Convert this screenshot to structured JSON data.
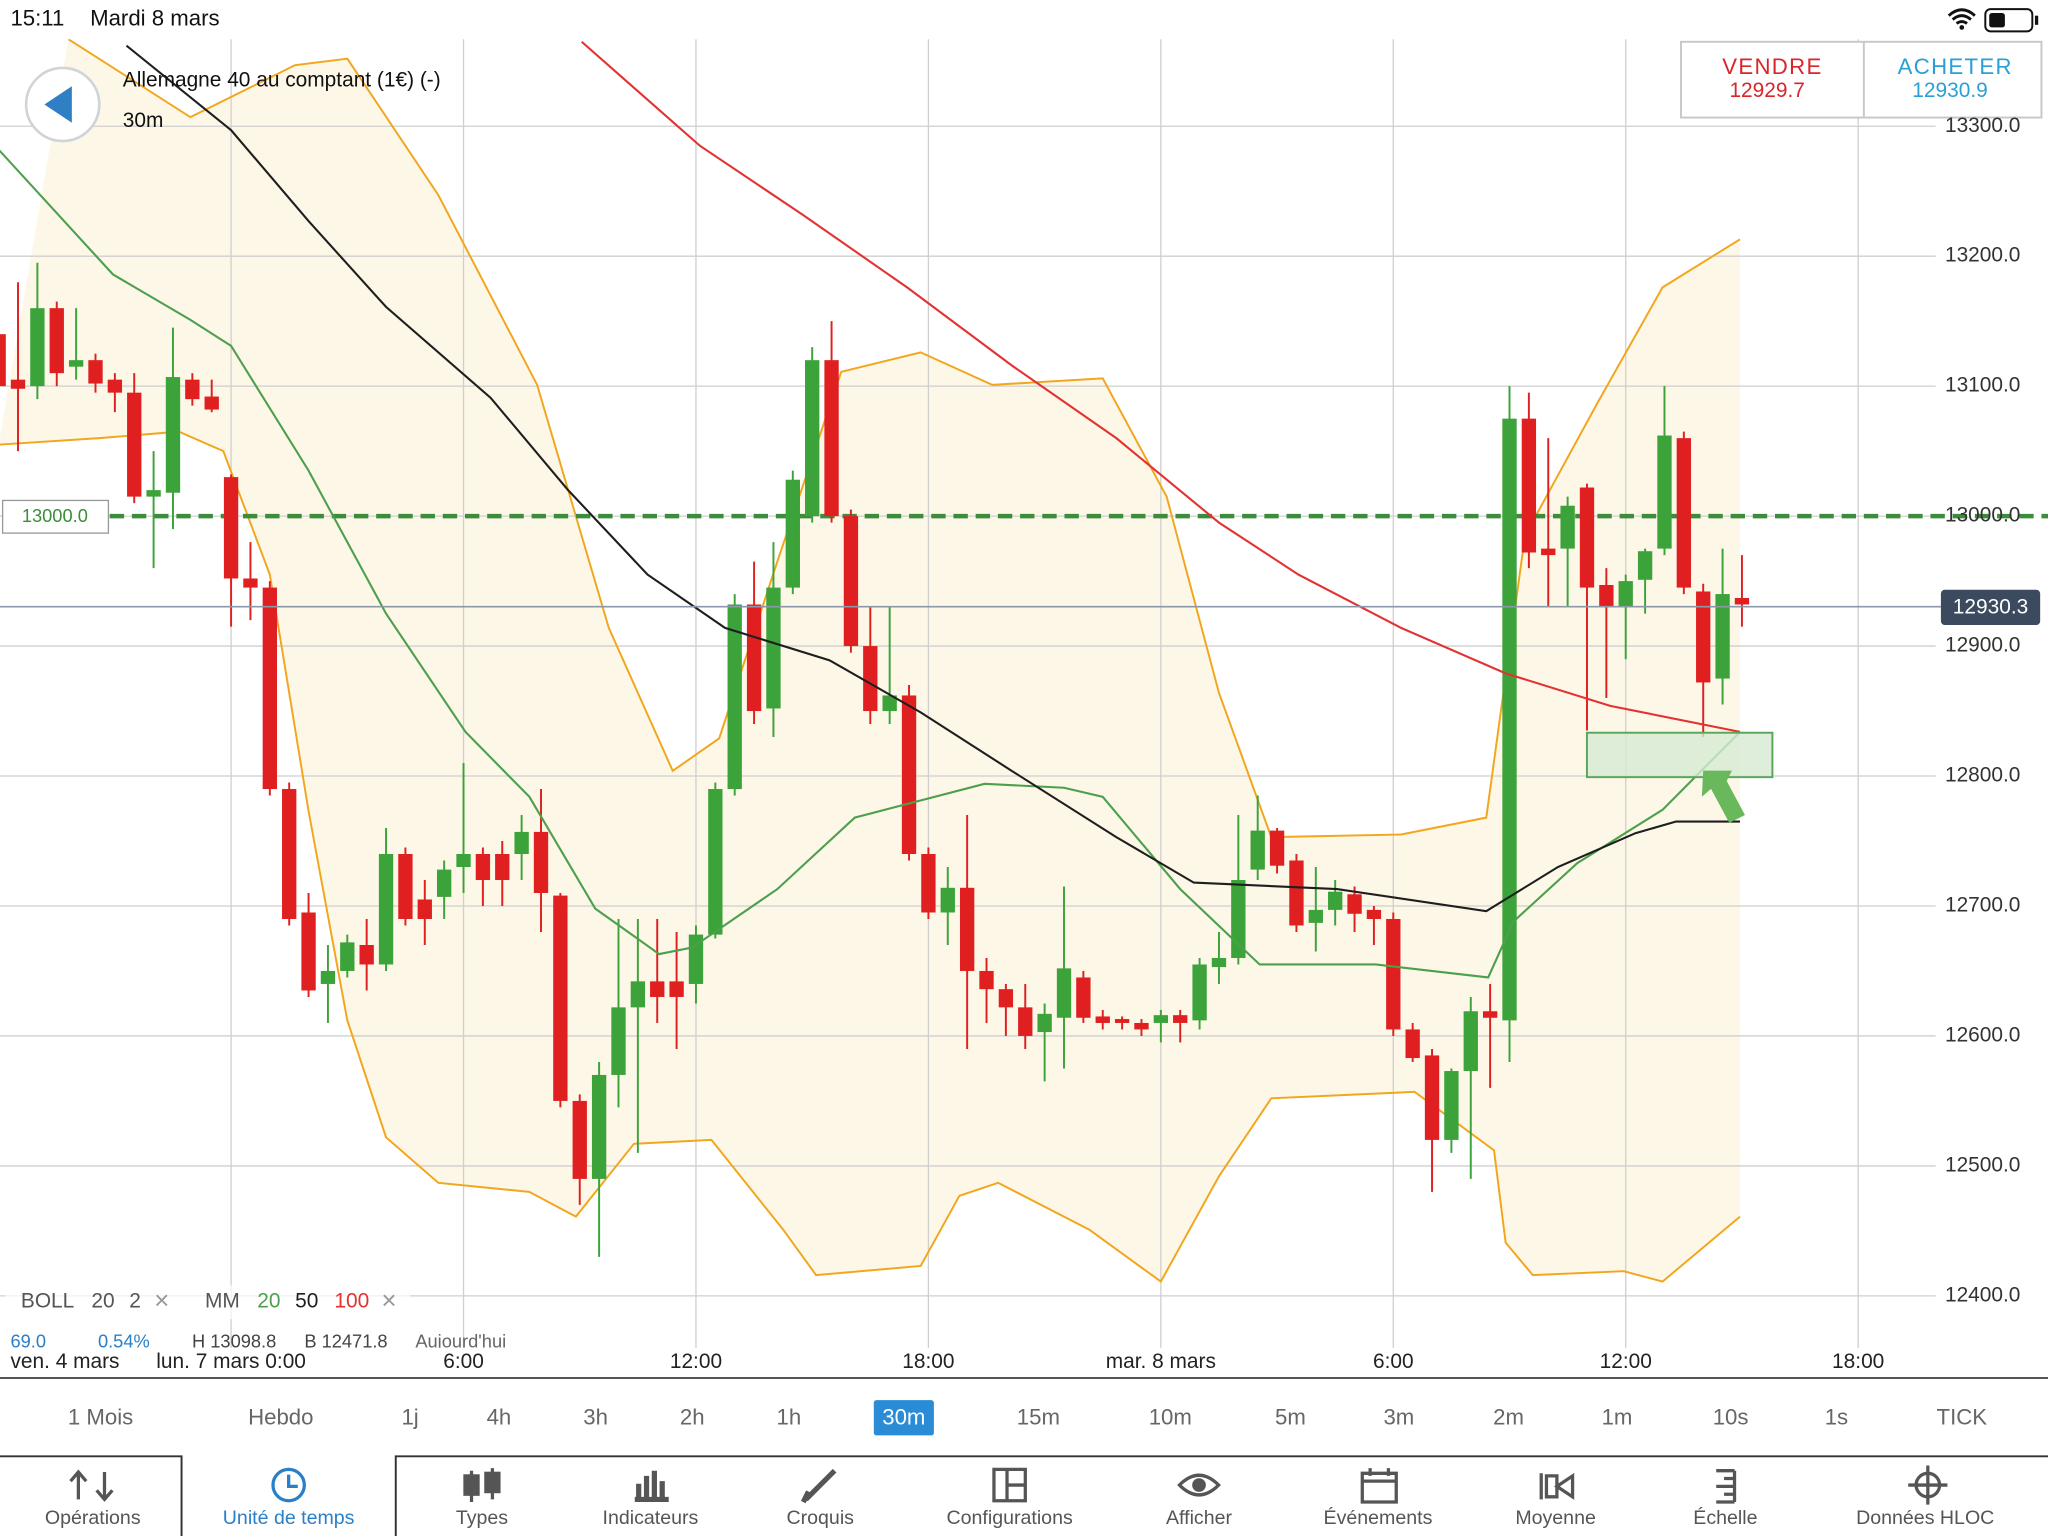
{
  "status_bar": {
    "time": "15:11",
    "date": "Mardi 8 mars"
  },
  "instrument": {
    "name": "Allemagne 40 au comptant (1€) (-)",
    "timeframe": "30m"
  },
  "quote": {
    "sell_label": "VENDRE",
    "sell_price": "12929.7",
    "buy_label": "ACHETER",
    "buy_price": "12930.9"
  },
  "chart_data": {
    "type": "candlestick",
    "x": [
      0,
      1,
      2,
      3,
      4,
      5,
      6,
      7,
      8,
      9,
      10,
      11,
      12,
      13,
      14,
      15,
      16,
      17,
      18,
      19,
      20,
      21,
      22,
      23,
      24,
      25,
      26,
      27,
      28,
      29,
      30,
      31,
      32,
      33,
      34,
      35,
      36,
      37,
      38,
      39,
      40,
      41,
      42,
      43,
      44,
      45,
      46,
      47,
      48,
      49,
      50,
      51,
      52,
      53,
      54,
      55,
      56,
      57,
      58,
      59,
      60,
      61,
      62,
      63,
      64,
      65,
      66,
      67,
      68,
      69,
      70,
      71,
      72,
      73,
      74,
      75,
      76,
      77,
      78,
      79,
      80,
      81,
      82,
      83,
      84,
      85,
      86,
      87,
      88,
      89,
      90
    ],
    "open": [
      13140,
      13105,
      13100,
      13160,
      13115,
      13120,
      13105,
      13095,
      13015,
      13018,
      13105,
      13092,
      13030,
      12952,
      12945,
      12790,
      12695,
      12640,
      12650,
      12670,
      12655,
      12740,
      12705,
      12707,
      12730,
      12740,
      12740,
      12740,
      12757,
      12708,
      12550,
      12490,
      12570,
      12622,
      12642,
      12642,
      12640,
      12678,
      12790,
      12932,
      12852,
      12945,
      13000,
      13120,
      13000,
      12900,
      12850,
      12862,
      12740,
      12695,
      12714,
      12650,
      12636,
      12622,
      12603,
      12614,
      12645,
      12615,
      12613,
      12610,
      12610,
      12616,
      12612,
      12653,
      12660,
      12728,
      12758,
      12735,
      12687,
      12697,
      12709,
      12697,
      12690,
      12605,
      12585,
      12520,
      12573,
      12619,
      12612,
      13075,
      12975,
      12975,
      13022,
      12947,
      12930,
      12951,
      12975,
      13060,
      12942,
      12875,
      12937
    ],
    "high": [
      13145,
      13180,
      13195,
      13165,
      13160,
      13125,
      13110,
      13110,
      13050,
      13145,
      13110,
      13105,
      13032,
      12980,
      12950,
      12795,
      12710,
      12670,
      12678,
      12690,
      12760,
      12745,
      12720,
      12735,
      12810,
      12745,
      12750,
      12770,
      12790,
      12710,
      12555,
      12580,
      12690,
      12690,
      12690,
      12680,
      12685,
      12795,
      12940,
      12965,
      12980,
      13035,
      13130,
      13150,
      13005,
      12930,
      12930,
      12870,
      12745,
      12730,
      12770,
      12660,
      12640,
      12640,
      12625,
      12715,
      12650,
      12620,
      12615,
      12613,
      12620,
      12620,
      12660,
      12680,
      12770,
      12785,
      12760,
      12740,
      12730,
      12720,
      12715,
      12700,
      12695,
      12610,
      12590,
      12575,
      12630,
      12640,
      13100,
      13095,
      13060,
      13015,
      13025,
      12960,
      12955,
      12975,
      13100,
      13065,
      12948,
      12975,
      12970
    ],
    "low": [
      13100,
      13050,
      13090,
      13100,
      13105,
      13095,
      13080,
      13010,
      12960,
      12990,
      13085,
      13080,
      12915,
      12920,
      12785,
      12685,
      12630,
      12610,
      12645,
      12635,
      12650,
      12685,
      12670,
      12690,
      12710,
      12700,
      12700,
      12720,
      12680,
      12545,
      12470,
      12430,
      12545,
      12510,
      12610,
      12590,
      12625,
      12675,
      12785,
      12840,
      12830,
      12940,
      12995,
      12995,
      12895,
      12840,
      12840,
      12735,
      12690,
      12670,
      12590,
      12610,
      12600,
      12590,
      12565,
      12575,
      12610,
      12605,
      12605,
      12600,
      12595,
      12595,
      12605,
      12640,
      12655,
      12720,
      12725,
      12680,
      12665,
      12685,
      12680,
      12670,
      12600,
      12580,
      12480,
      12510,
      12490,
      12560,
      12580,
      12960,
      12930,
      12930,
      12835,
      12860,
      12890,
      12925,
      12970,
      12940,
      12830,
      12855,
      12915
    ],
    "close": [
      13100,
      13098,
      13160,
      13110,
      13120,
      13102,
      13095,
      13015,
      13020,
      13107,
      13090,
      13082,
      12952,
      12945,
      12790,
      12690,
      12635,
      12650,
      12672,
      12655,
      12740,
      12690,
      12690,
      12728,
      12740,
      12720,
      12720,
      12757,
      12710,
      12550,
      12490,
      12570,
      12622,
      12642,
      12630,
      12630,
      12678,
      12790,
      12932,
      12850,
      12945,
      13028,
      13120,
      13000,
      12900,
      12850,
      12862,
      12740,
      12695,
      12714,
      12650,
      12636,
      12622,
      12600,
      12617,
      12652,
      12614,
      12610,
      12610,
      12605,
      12616,
      12610,
      12655,
      12660,
      12720,
      12758,
      12731,
      12685,
      12697,
      12711,
      12694,
      12690,
      12605,
      12583,
      12520,
      12573,
      12619,
      12614,
      13075,
      12972,
      12970,
      13008,
      12945,
      12930,
      12950,
      12973,
      13062,
      12945,
      12872,
      12940,
      12932
    ],
    "up_color": "#3ca33a",
    "down_color": "#e02020",
    "bollinger": {
      "fill": "#fdf7e8",
      "upper": {
        "color": "#f2a61c",
        "x": [
          3.6,
          9.9,
          15.3,
          18.0,
          22.7,
          27.8,
          31.5,
          34.8,
          37.2,
          40.2,
          43.5,
          47.6,
          51.3,
          57.0,
          60.3,
          63.0,
          65.7,
          72.4,
          76.8,
          78.8,
          82.5,
          85.9,
          89.9
        ],
        "values": [
          13367,
          13307,
          13347,
          13352,
          13247,
          13101,
          12914,
          12804,
          12829,
          12965,
          13111,
          13126,
          13101,
          13106,
          13015,
          12864,
          12753,
          12755,
          12768,
          12985,
          13086,
          13176,
          13213
        ]
      },
      "lower": {
        "color": "#f2a61c",
        "x": [
          0,
          5.2,
          9.3,
          11.6,
          14.0,
          16.0,
          18.0,
          20.0,
          22.7,
          27.4,
          29.8,
          32.8,
          36.8,
          40.5,
          42.2,
          47.6,
          49.6,
          51.6,
          56.3,
          60.0,
          63.0,
          65.7,
          73.1,
          77.2,
          77.8,
          79.2,
          83.9,
          85.9,
          89.9
        ],
        "values": [
          13055,
          13060,
          13065,
          13050,
          12955,
          12773,
          12612,
          12522,
          12487,
          12480,
          12461,
          12517,
          12520,
          12451,
          12416,
          12423,
          12477,
          12487,
          12451,
          12411,
          12492,
          12552,
          12557,
          12512,
          12441,
          12416,
          12419,
          12411,
          12461
        ]
      }
    },
    "moving_averages": [
      {
        "color": "#4c9f4c",
        "x": [
          0,
          5.9,
          9.9,
          12.0,
          16.0,
          20.0,
          24.1,
          27.4,
          30.8,
          34.1,
          35.8,
          40.2,
          44.2,
          50.9,
          55.0,
          57.0,
          61.0,
          65.1,
          71.1,
          76.9,
          78.2,
          81.5,
          85.9,
          89.9
        ],
        "values": [
          13282,
          13186,
          13151,
          13131,
          13035,
          12925,
          12834,
          12784,
          12698,
          12663,
          12668,
          12713,
          12768,
          12794,
          12791,
          12784,
          12713,
          12655,
          12655,
          12645,
          12688,
          12733,
          12774,
          12834
        ]
      },
      {
        "color": "#1e1e1e",
        "x": [
          6.6,
          12.0,
          16.0,
          20.0,
          25.4,
          29.4,
          33.5,
          37.5,
          42.9,
          47.6,
          52.3,
          57.7,
          61.7,
          69.1,
          76.8,
          80.5,
          84.5,
          86.6,
          89.9
        ],
        "values": [
          13362,
          13297,
          13227,
          13161,
          13091,
          13020,
          12955,
          12914,
          12889,
          12849,
          12804,
          12753,
          12718,
          12713,
          12696,
          12730,
          12756,
          12765,
          12765
        ]
      },
      {
        "color": "#e23232",
        "x": [
          30.1,
          36.2,
          41.5,
          46.9,
          52.3,
          57.7,
          63.0,
          67.1,
          72.4,
          77.8,
          83.2,
          89.9
        ],
        "values": [
          13365,
          13285,
          13232,
          13176,
          13116,
          13060,
          12995,
          12955,
          12914,
          12879,
          12854,
          12834
        ]
      }
    ],
    "xlim": [
      0.07,
      105.8
    ],
    "ylim": [
      12370,
      13370
    ],
    "xticks": [
      {
        "value": 12,
        "label": "lun. 7 mars 0:00"
      },
      {
        "value": 24,
        "label": "6:00"
      },
      {
        "value": 36,
        "label": "12:00"
      },
      {
        "value": 48,
        "label": "18:00"
      },
      {
        "value": 60,
        "label": "mar. 8 mars"
      },
      {
        "value": 72,
        "label": "6:00"
      },
      {
        "value": 84,
        "label": "12:00"
      },
      {
        "value": 96,
        "label": "18:00"
      }
    ],
    "x_start_label": "ven. 4 mars",
    "yticks": [
      {
        "value": 12400,
        "label": "12400.0"
      },
      {
        "value": 12500,
        "label": "12500.0"
      },
      {
        "value": 12600,
        "label": "12600.0"
      },
      {
        "value": 12700,
        "label": "12700.0"
      },
      {
        "value": 12800,
        "label": "12800.0"
      },
      {
        "value": 12900,
        "label": "12900.0"
      },
      {
        "value": 13000,
        "label": "13000.0"
      },
      {
        "value": 13100,
        "label": "13100.0"
      },
      {
        "value": 13200,
        "label": "13200.0"
      },
      {
        "value": 13300,
        "label": "13300.0"
      }
    ],
    "grid": true,
    "level": {
      "value": 13000,
      "label": "13000.0",
      "color": "#3c8c3c"
    },
    "last_price": {
      "value": 12930.3,
      "label": "12930.3"
    },
    "legend": {
      "boll": [
        "BOLL",
        "20",
        "2",
        "×"
      ],
      "mm": [
        "MM",
        "20",
        "50",
        "100",
        "×"
      ]
    },
    "stats": [
      "69.0",
      "0.54%",
      "H 13098.8",
      "B 12471.8",
      "Aujourd'hui"
    ]
  },
  "timeframes": {
    "items": [
      "1 Mois",
      "Hebdo",
      "1j",
      "4h",
      "3h",
      "2h",
      "1h",
      "30m",
      "15m",
      "10m",
      "5m",
      "3m",
      "2m",
      "1m",
      "10s",
      "1s",
      "TICK"
    ],
    "selected": 7
  },
  "toolbar": {
    "items": [
      "Opérations",
      "Unité de temps",
      "Types",
      "Indicateurs",
      "Croquis",
      "Configurations",
      "Afficher",
      "Événements",
      "Moyenne",
      "Échelle",
      "Données HLOC"
    ],
    "selected": 1
  }
}
